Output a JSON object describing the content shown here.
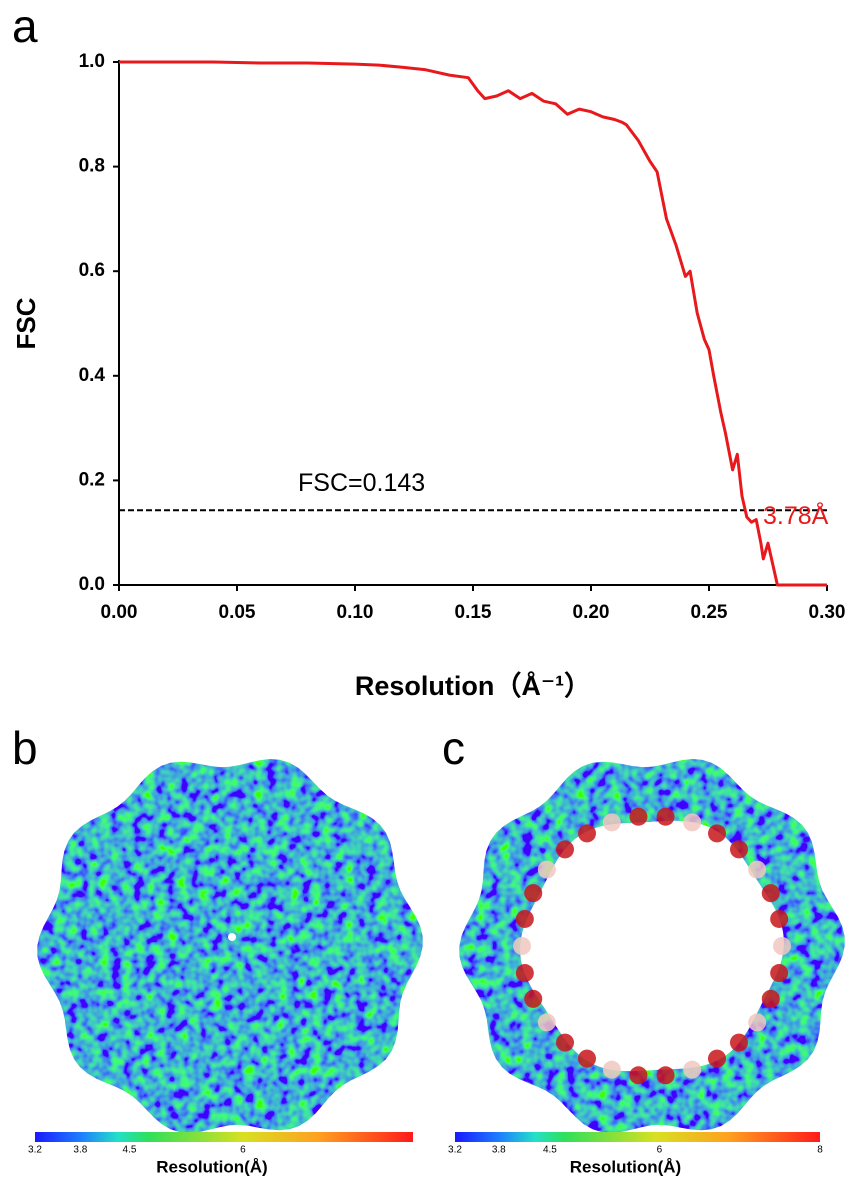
{
  "chart_data": {
    "type": "line",
    "y_label": "FSC",
    "x_label": "Resolution（Å⁻¹）",
    "color": "#e8191c",
    "x": [
      0,
      0.02,
      0.04,
      0.06,
      0.08,
      0.1,
      0.11,
      0.12,
      0.13,
      0.14,
      0.148,
      0.152,
      0.155,
      0.16,
      0.165,
      0.17,
      0.175,
      0.18,
      0.185,
      0.19,
      0.195,
      0.2,
      0.205,
      0.21,
      0.213,
      0.215,
      0.22,
      0.225,
      0.228,
      0.232,
      0.236,
      0.24,
      0.242,
      0.245,
      0.248,
      0.25,
      0.252,
      0.255,
      0.257,
      0.26,
      0.262,
      0.264,
      0.266,
      0.268,
      0.27,
      0.272,
      0.273,
      0.275,
      0.277,
      0.279,
      0.29,
      0.3
    ],
    "values": [
      1.0,
      1.0,
      1.0,
      0.998,
      0.998,
      0.996,
      0.994,
      0.99,
      0.985,
      0.975,
      0.97,
      0.945,
      0.93,
      0.935,
      0.945,
      0.93,
      0.94,
      0.925,
      0.92,
      0.9,
      0.91,
      0.905,
      0.895,
      0.89,
      0.885,
      0.88,
      0.85,
      0.81,
      0.79,
      0.7,
      0.65,
      0.59,
      0.6,
      0.52,
      0.47,
      0.45,
      0.4,
      0.33,
      0.29,
      0.22,
      0.25,
      0.17,
      0.13,
      0.12,
      0.125,
      0.08,
      0.05,
      0.08,
      0.04,
      0,
      0,
      0
    ],
    "xlim": [
      0,
      0.3
    ],
    "ylim": [
      0,
      1.0
    ],
    "xticks": [
      {
        "value": 0,
        "label": "0.00"
      },
      0.05,
      {
        "value": 0.1,
        "label": "0.10"
      },
      0.15,
      {
        "value": 0.2,
        "label": "0.20"
      },
      0.25,
      {
        "value": 0.3,
        "label": "0.30"
      }
    ],
    "yticks": [
      {
        "value": 0,
        "label": "0.0"
      },
      0.2,
      0.4,
      0.6,
      0.8,
      {
        "value": 1,
        "label": "1.0"
      }
    ],
    "reference_line": {
      "value": 0.143,
      "label": "FSC=0.143"
    },
    "annotation": "3.78Å"
  },
  "figure": {
    "panel_labels": [
      "a",
      "b",
      "c"
    ],
    "colorbars": [
      {
        "ticks": [
          "3.2",
          "3.8",
          "4.5",
          "6"
        ],
        "label": "Resolution(Å)"
      },
      {
        "ticks": [
          "3.2",
          "3.8",
          "4.5",
          "6",
          "8"
        ],
        "label": "Resolution(Å)"
      }
    ]
  }
}
